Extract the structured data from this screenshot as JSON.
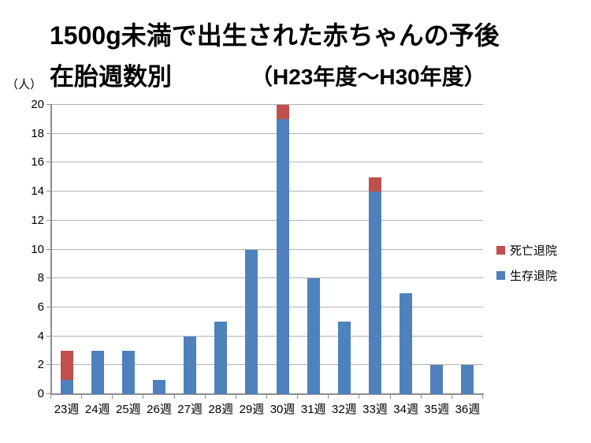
{
  "title": "1500g未満で出生された赤ちゃんの予後",
  "subtitle": "在胎週数別",
  "subtitle_period": "（H23年度～H30年度）",
  "y_unit_label": "（人）",
  "colors": {
    "survive": "#4F81BD",
    "death": "#C0504D",
    "gridline": "#b3b3b3",
    "axis": "#8e8e8e",
    "text": "#000000",
    "background": "#ffffff"
  },
  "legend": [
    {
      "key": "death",
      "label": "死亡退院",
      "color": "#C0504D"
    },
    {
      "key": "survive",
      "label": "生存退院",
      "color": "#4F81BD"
    }
  ],
  "chart_data": {
    "type": "bar",
    "stacked": true,
    "title": "1500g未満で出生された赤ちゃんの予後 在胎週数別（H23年度～H30年度）",
    "categories": [
      "23週",
      "24週",
      "25週",
      "26週",
      "27週",
      "28週",
      "29週",
      "30週",
      "31週",
      "32週",
      "33週",
      "34週",
      "35週",
      "36週"
    ],
    "series": [
      {
        "key": "survive",
        "name": "生存退院",
        "color": "#4F81BD",
        "values": [
          1,
          3,
          3,
          1,
          4,
          5,
          10,
          19,
          8,
          5,
          14,
          7,
          2,
          2
        ]
      },
      {
        "key": "death",
        "name": "死亡退院",
        "color": "#C0504D",
        "values": [
          2,
          0,
          0,
          0,
          0,
          0,
          0,
          1,
          0,
          0,
          1,
          0,
          0,
          0
        ]
      }
    ],
    "xlabel": "",
    "ylabel": "（人）",
    "ylim": [
      0,
      20
    ],
    "ytick_step": 2,
    "grid": true,
    "legend_position": "right"
  }
}
